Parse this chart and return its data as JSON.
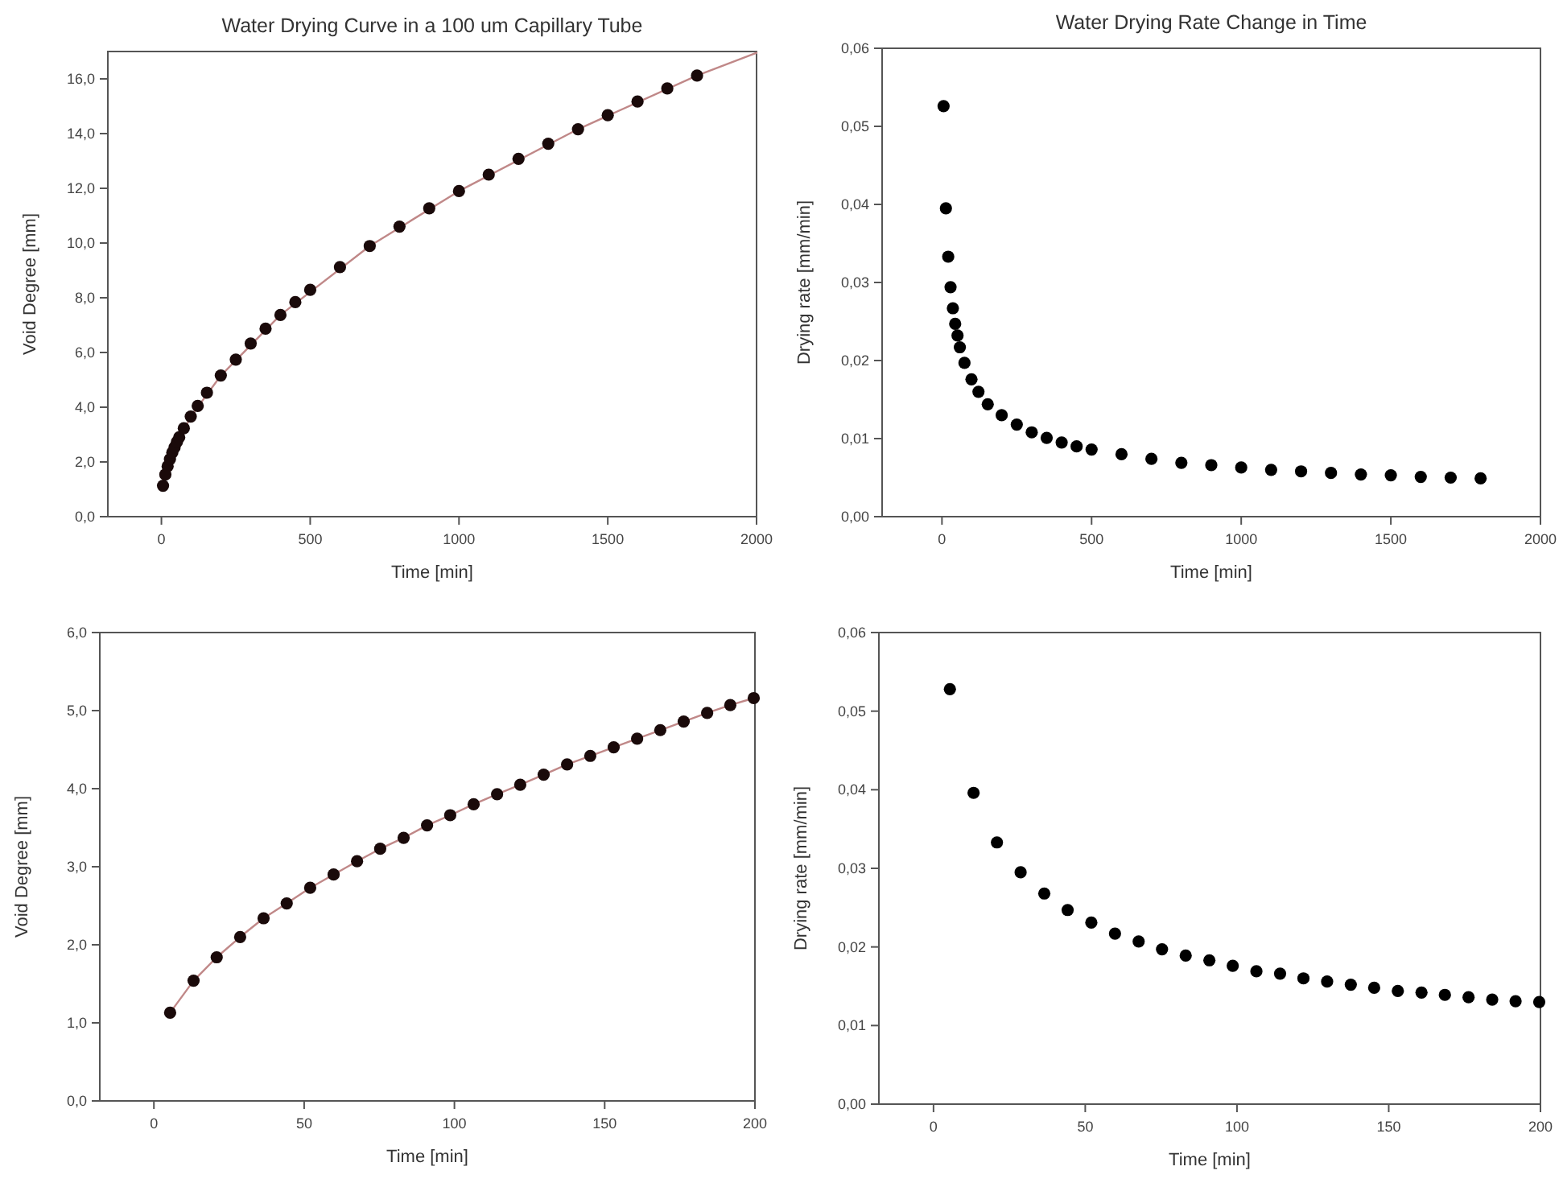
{
  "chart_data": [
    {
      "type": "scatter",
      "title": "Water Drying Curve in a 100 um Capillary Tube",
      "xlabel": "Time [min]",
      "ylabel": "Void Degree [mm]",
      "xlim": [
        -180,
        2000
      ],
      "xticks": [
        0,
        500,
        1000,
        1500,
        2000
      ],
      "ylim": [
        0,
        17
      ],
      "yticks": [
        {
          "value": 0,
          "label": "0,0"
        },
        {
          "value": 2,
          "label": "2,0"
        },
        {
          "value": 4,
          "label": "4,0"
        },
        {
          "value": 6,
          "label": "6,0"
        },
        {
          "value": 8,
          "label": "8,0"
        },
        {
          "value": 10,
          "label": "10,0"
        },
        {
          "value": 12,
          "label": "12,0"
        },
        {
          "value": 14,
          "label": "14,0"
        },
        {
          "value": 16,
          "label": "16,0"
        }
      ],
      "series": [
        {
          "type": "line",
          "color": "#c08888",
          "line_style": "solid",
          "x": [
            5.4,
            50,
            100,
            200,
            400,
            700,
            1000,
            1400,
            1800,
            2000
          ],
          "values": [
            1.13,
            2.64,
            3.68,
            5.16,
            7.37,
            9.89,
            11.9,
            14.16,
            16.12,
            16.95
          ]
        },
        {
          "color": "#1a0a0a",
          "marker": "circle",
          "x": [
            5.4,
            13.2,
            20.9,
            28.7,
            36.5,
            44.2,
            52,
            59.8,
            75.3,
            98.6,
            122,
            153,
            199.6,
            250,
            300,
            350,
            400,
            450,
            500,
            600,
            700,
            800,
            900,
            1000,
            1100,
            1200,
            1300,
            1400,
            1500,
            1600,
            1700,
            1800
          ],
          "values": [
            1.13,
            1.54,
            1.84,
            2.1,
            2.34,
            2.53,
            2.73,
            2.9,
            3.23,
            3.66,
            4.05,
            4.53,
            5.16,
            5.74,
            6.33,
            6.87,
            7.37,
            7.84,
            8.29,
            9.12,
            9.89,
            10.6,
            11.27,
            11.9,
            12.5,
            13.08,
            13.63,
            14.16,
            14.67,
            15.17,
            15.65,
            16.12
          ]
        }
      ]
    },
    {
      "type": "scatter",
      "title": "Water Drying Rate Change in Time",
      "xlabel": "Time [min]",
      "ylabel": "Drying rate [mm/min]",
      "xlim": [
        -200,
        2000
      ],
      "xticks": [
        0,
        500,
        1000,
        1500,
        2000
      ],
      "ylim": [
        0,
        0.06
      ],
      "yticks": [
        {
          "value": 0,
          "label": "0,00"
        },
        {
          "value": 0.01,
          "label": "0,01"
        },
        {
          "value": 0.02,
          "label": "0,02"
        },
        {
          "value": 0.03,
          "label": "0,03"
        },
        {
          "value": 0.04,
          "label": "0,04"
        },
        {
          "value": 0.05,
          "label": "0,05"
        },
        {
          "value": 0.06,
          "label": "0,06"
        }
      ],
      "series": [
        {
          "color": "#000000",
          "marker": "circle",
          "x": [
            5.4,
            13.2,
            20.9,
            28.7,
            36.5,
            44.2,
            52,
            59.8,
            75.3,
            98.6,
            122,
            153,
            199.6,
            250,
            300,
            350,
            400,
            450,
            500,
            600,
            700,
            800,
            900,
            1000,
            1100,
            1200,
            1300,
            1400,
            1500,
            1600,
            1700,
            1800
          ],
          "values": [
            0.0526,
            0.0395,
            0.0333,
            0.0294,
            0.0267,
            0.0247,
            0.0232,
            0.0217,
            0.0197,
            0.0176,
            0.016,
            0.0144,
            0.013,
            0.0118,
            0.0108,
            0.0101,
            0.0095,
            0.009,
            0.0086,
            0.008,
            0.0074,
            0.0069,
            0.0066,
            0.0063,
            0.006,
            0.0058,
            0.0056,
            0.0054,
            0.0053,
            0.0051,
            0.005,
            0.0049
          ]
        }
      ]
    },
    {
      "type": "scatter",
      "xlabel": "Time [min]",
      "ylabel": "Void Degree [mm]",
      "xlim": [
        -18,
        200
      ],
      "xticks": [
        0,
        50,
        100,
        150,
        200
      ],
      "ylim": [
        0,
        6
      ],
      "yticks": [
        {
          "value": 0,
          "label": "0,0"
        },
        {
          "value": 1,
          "label": "1,0"
        },
        {
          "value": 2,
          "label": "2,0"
        },
        {
          "value": 3,
          "label": "3,0"
        },
        {
          "value": 4,
          "label": "4,0"
        },
        {
          "value": 5,
          "label": "5,0"
        },
        {
          "value": 6,
          "label": "6,0"
        }
      ],
      "series": [
        {
          "type": "line",
          "color": "#c08888",
          "line_style": "solid",
          "x": [
            5.4,
            13.2,
            20.9,
            28.7,
            36.5,
            44.2,
            52,
            59.8,
            67.6,
            75.3,
            83.1,
            90.9,
            98.6,
            106.4,
            114.2,
            121.9,
            129.7,
            137.5,
            145.2,
            153,
            160.8,
            168.5,
            176.3,
            184.1,
            191.8,
            199.6
          ],
          "values": [
            1.13,
            1.54,
            1.84,
            2.1,
            2.34,
            2.53,
            2.73,
            2.9,
            3.07,
            3.23,
            3.37,
            3.53,
            3.66,
            3.8,
            3.93,
            4.05,
            4.18,
            4.31,
            4.42,
            4.53,
            4.64,
            4.75,
            4.86,
            4.97,
            5.07,
            5.16
          ]
        },
        {
          "color": "#1a0a0a",
          "marker": "circle",
          "x": [
            5.4,
            13.2,
            20.9,
            28.7,
            36.5,
            44.2,
            52,
            59.8,
            67.6,
            75.3,
            83.1,
            90.9,
            98.6,
            106.4,
            114.2,
            121.9,
            129.7,
            137.5,
            145.2,
            153,
            160.8,
            168.5,
            176.3,
            184.1,
            191.8,
            199.6
          ],
          "values": [
            1.13,
            1.54,
            1.84,
            2.1,
            2.34,
            2.53,
            2.73,
            2.9,
            3.07,
            3.23,
            3.37,
            3.53,
            3.66,
            3.8,
            3.93,
            4.05,
            4.18,
            4.31,
            4.42,
            4.53,
            4.64,
            4.75,
            4.86,
            4.97,
            5.07,
            5.16
          ]
        }
      ]
    },
    {
      "type": "scatter",
      "xlabel": "Time [min]",
      "ylabel": "Drying rate [mm/min]",
      "xlim": [
        -18,
        200
      ],
      "xticks": [
        0,
        50,
        100,
        150,
        200
      ],
      "ylim": [
        0,
        0.06
      ],
      "yticks": [
        {
          "value": 0,
          "label": "0,00"
        },
        {
          "value": 0.01,
          "label": "0,01"
        },
        {
          "value": 0.02,
          "label": "0,02"
        },
        {
          "value": 0.03,
          "label": "0,03"
        },
        {
          "value": 0.04,
          "label": "0,04"
        },
        {
          "value": 0.05,
          "label": "0,05"
        },
        {
          "value": 0.06,
          "label": "0,06"
        }
      ],
      "series": [
        {
          "color": "#000000",
          "marker": "circle",
          "x": [
            5.4,
            13.2,
            20.9,
            28.7,
            36.5,
            44.2,
            52,
            59.8,
            67.6,
            75.3,
            83.1,
            90.9,
            98.6,
            106.4,
            114.2,
            121.9,
            129.7,
            137.5,
            145.2,
            153,
            160.8,
            168.5,
            176.3,
            184.1,
            191.8,
            199.6
          ],
          "values": [
            0.0528,
            0.0396,
            0.0333,
            0.0295,
            0.0268,
            0.0247,
            0.0231,
            0.0217,
            0.0207,
            0.0197,
            0.0189,
            0.0183,
            0.0176,
            0.0169,
            0.0166,
            0.016,
            0.0156,
            0.0152,
            0.0148,
            0.0144,
            0.0142,
            0.0139,
            0.0136,
            0.0133,
            0.0131,
            0.013
          ]
        }
      ]
    }
  ]
}
